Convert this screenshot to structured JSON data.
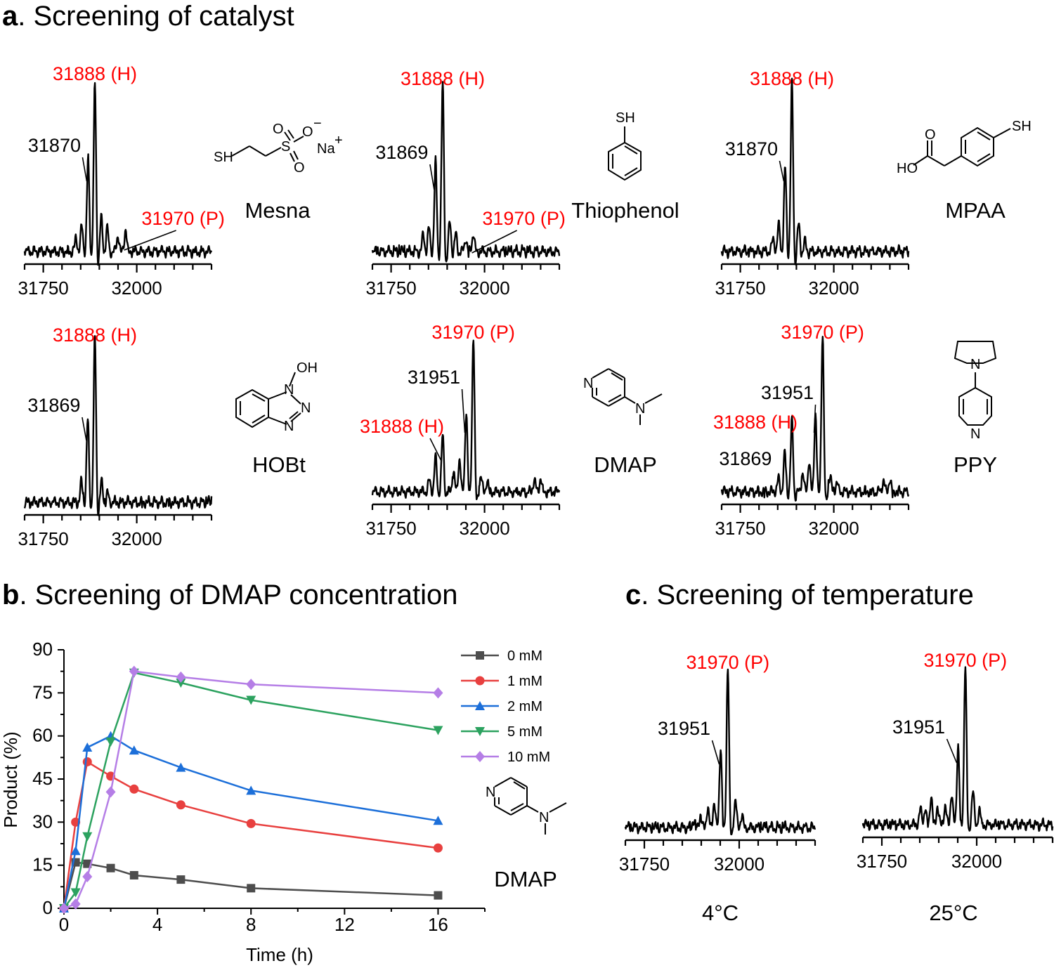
{
  "panels": {
    "a": {
      "letter": "a",
      "title": ". Screening of catalyst"
    },
    "b": {
      "letter": "b",
      "title": ". Screening of DMAP concentration"
    },
    "c": {
      "letter": "c",
      "title": ". Screening of temperature"
    }
  },
  "colors": {
    "highlight": "#ff0000",
    "text": "#000000"
  },
  "structures": {
    "mesna": {
      "SH": "SH",
      "S": "S",
      "O1": "O",
      "O2": "O",
      "Ominus": "O",
      "minus": "−",
      "Na": "Na",
      "plus": "+"
    },
    "thiophenol": {
      "SH": "SH"
    },
    "mpaa": {
      "SH": "SH",
      "HO": "HO",
      "O": "O"
    },
    "hobt": {
      "OH": "OH",
      "N1": "N",
      "N2": "N",
      "N3": "N"
    },
    "dmap": {
      "N1": "N",
      "N2": "N"
    },
    "ppy": {
      "N1": "N",
      "N2": "N"
    },
    "dmap_b": {
      "N1": "N",
      "N2": "N"
    }
  },
  "chart_data": [
    {
      "type": "line",
      "subtype": "deconvoluted mass spectrum",
      "panel": "a",
      "catalyst": "Mesna",
      "xlim": [
        31700,
        32200
      ],
      "xticks": [
        31750,
        32000
      ],
      "peak_labels": [
        {
          "text": "31888 (H)",
          "mass": 31888,
          "color": "red"
        },
        {
          "text": "31870",
          "mass": 31870,
          "color": "black"
        },
        {
          "text": "31970 (P)",
          "mass": 31970,
          "color": "red"
        }
      ],
      "peaks": [
        [
          31888,
          1.0
        ],
        [
          31870,
          0.55
        ],
        [
          31853,
          0.15
        ],
        [
          31905,
          0.2
        ],
        [
          31921,
          0.14
        ],
        [
          31950,
          0.1
        ],
        [
          31970,
          0.13
        ],
        [
          31838,
          0.08
        ]
      ]
    },
    {
      "type": "line",
      "subtype": "deconvoluted mass spectrum",
      "panel": "a",
      "catalyst": "Thiophenol",
      "xlim": [
        31700,
        32200
      ],
      "xticks": [
        31750,
        32000
      ],
      "peak_labels": [
        {
          "text": "31888 (H)",
          "mass": 31888,
          "color": "red"
        },
        {
          "text": "31869",
          "mass": 31869,
          "color": "black"
        },
        {
          "text": "31970 (P)",
          "mass": 31970,
          "color": "red"
        }
      ],
      "peaks": [
        [
          31888,
          1.0
        ],
        [
          31869,
          0.53
        ],
        [
          31851,
          0.14
        ],
        [
          31907,
          0.17
        ],
        [
          31923,
          0.1
        ],
        [
          31950,
          0.08
        ],
        [
          31970,
          0.11
        ],
        [
          31836,
          0.1
        ]
      ]
    },
    {
      "type": "line",
      "subtype": "deconvoluted mass spectrum",
      "panel": "a",
      "catalyst": "MPAA",
      "xlim": [
        31700,
        32200
      ],
      "xticks": [
        31750,
        32000
      ],
      "peak_labels": [
        {
          "text": "31888 (H)",
          "mass": 31888,
          "color": "red"
        },
        {
          "text": "31870",
          "mass": 31870,
          "color": "black"
        }
      ],
      "peaks": [
        [
          31888,
          1.0
        ],
        [
          31870,
          0.5
        ],
        [
          31853,
          0.16
        ],
        [
          31906,
          0.16
        ],
        [
          31923,
          0.06
        ],
        [
          31838,
          0.08
        ]
      ]
    },
    {
      "type": "line",
      "subtype": "deconvoluted mass spectrum",
      "panel": "a",
      "catalyst": "HOBt",
      "xlim": [
        31700,
        32200
      ],
      "xticks": [
        31750,
        32000
      ],
      "peak_labels": [
        {
          "text": "31888 (H)",
          "mass": 31888,
          "color": "red"
        },
        {
          "text": "31869",
          "mass": 31869,
          "color": "black"
        }
      ],
      "peaks": [
        [
          31888,
          1.0
        ],
        [
          31869,
          0.5
        ],
        [
          31852,
          0.12
        ],
        [
          31906,
          0.12
        ],
        [
          31922,
          0.05
        ]
      ]
    },
    {
      "type": "line",
      "subtype": "deconvoluted mass spectrum",
      "panel": "a",
      "catalyst": "DMAP",
      "xlim": [
        31700,
        32200
      ],
      "xticks": [
        31750,
        32000
      ],
      "peak_labels": [
        {
          "text": "31970 (P)",
          "mass": 31970,
          "color": "red"
        },
        {
          "text": "31951",
          "mass": 31951,
          "color": "black"
        },
        {
          "text": "31888 (H)",
          "mass": 31888,
          "color": "red"
        }
      ],
      "peaks": [
        [
          31970,
          1.0
        ],
        [
          31951,
          0.52
        ],
        [
          31888,
          0.36
        ],
        [
          31869,
          0.22
        ],
        [
          31933,
          0.22
        ],
        [
          31917,
          0.13
        ],
        [
          31852,
          0.07
        ],
        [
          31990,
          0.1
        ],
        [
          32007,
          0.07
        ],
        [
          32133,
          0.08
        ],
        [
          32150,
          0.09
        ]
      ]
    },
    {
      "type": "line",
      "subtype": "deconvoluted mass spectrum",
      "panel": "a",
      "catalyst": "PPY",
      "xlim": [
        31700,
        32200
      ],
      "xticks": [
        31750,
        32000
      ],
      "peak_labels": [
        {
          "text": "31970 (P)",
          "mass": 31970,
          "color": "red"
        },
        {
          "text": "31951",
          "mass": 31951,
          "color": "black"
        },
        {
          "text": "31888 (H)",
          "mass": 31888,
          "color": "red"
        },
        {
          "text": "31869",
          "mass": 31869,
          "color": "black"
        }
      ],
      "peaks": [
        [
          31970,
          1.0
        ],
        [
          31951,
          0.5
        ],
        [
          31888,
          0.45
        ],
        [
          31869,
          0.25
        ],
        [
          31934,
          0.2
        ],
        [
          31917,
          0.12
        ],
        [
          31852,
          0.08
        ],
        [
          31990,
          0.1
        ],
        [
          32008,
          0.06
        ],
        [
          32133,
          0.07
        ],
        [
          32150,
          0.08
        ]
      ]
    },
    {
      "type": "line",
      "panel": "b",
      "title": "Screening of DMAP concentration",
      "xlabel": "Time (h)",
      "ylabel": "Product (%)",
      "xlim": [
        0,
        18
      ],
      "ylim": [
        0,
        90
      ],
      "xticks": [
        0,
        4,
        8,
        12,
        16
      ],
      "yticks": [
        0,
        15,
        30,
        45,
        60,
        75,
        90
      ],
      "legend_position": "top-right",
      "inset_label": "DMAP",
      "series": [
        {
          "name": "0 mM",
          "color": "#4d4d4d",
          "marker": "square",
          "x": [
            0,
            0.5,
            1,
            2,
            3,
            5,
            8,
            16
          ],
          "y": [
            0,
            16,
            15.5,
            14,
            11.5,
            10,
            7,
            4.5
          ]
        },
        {
          "name": "1 mM",
          "color": "#e8403f",
          "marker": "circle",
          "x": [
            0,
            0.5,
            1,
            2,
            3,
            5,
            8,
            16
          ],
          "y": [
            0,
            30,
            51,
            46,
            41.5,
            36,
            29.5,
            21
          ]
        },
        {
          "name": "2 mM",
          "color": "#1c6fd9",
          "marker": "triangle-up",
          "x": [
            0,
            0.5,
            1,
            2,
            3,
            5,
            8,
            16
          ],
          "y": [
            0,
            20,
            56,
            60,
            55,
            49,
            41,
            30.5
          ]
        },
        {
          "name": "5 mM",
          "color": "#2ca25f",
          "marker": "triangle-down",
          "x": [
            0,
            0.5,
            1,
            2,
            3,
            5,
            8,
            16
          ],
          "y": [
            0,
            5.5,
            25,
            58,
            82,
            78.5,
            72.5,
            62
          ]
        },
        {
          "name": "10 mM",
          "color": "#b57ee6",
          "marker": "diamond",
          "x": [
            0,
            0.5,
            1,
            2,
            3,
            5,
            8,
            16
          ],
          "y": [
            0,
            1.5,
            11,
            40.5,
            82.5,
            80.5,
            78,
            75
          ]
        }
      ]
    },
    {
      "type": "line",
      "subtype": "deconvoluted mass spectrum",
      "panel": "c",
      "temperature": "4°C",
      "xlim": [
        31700,
        32200
      ],
      "xticks": [
        31750,
        32000
      ],
      "peak_labels": [
        {
          "text": "31970 (P)",
          "mass": 31970,
          "color": "red"
        },
        {
          "text": "31951",
          "mass": 31951,
          "color": "black"
        }
      ],
      "peaks": [
        [
          31970,
          1.0
        ],
        [
          31951,
          0.5
        ],
        [
          31934,
          0.16
        ],
        [
          31917,
          0.12
        ],
        [
          31990,
          0.17
        ],
        [
          32007,
          0.08
        ],
        [
          31898,
          0.08
        ],
        [
          31880,
          0.05
        ]
      ]
    },
    {
      "type": "line",
      "subtype": "deconvoluted mass spectrum",
      "panel": "c",
      "temperature": "25°C",
      "xlim": [
        31700,
        32200
      ],
      "xticks": [
        31750,
        32000
      ],
      "peak_labels": [
        {
          "text": "31970 (P)",
          "mass": 31970,
          "color": "red"
        },
        {
          "text": "31951",
          "mass": 31951,
          "color": "black"
        }
      ],
      "peaks": [
        [
          31970,
          1.0
        ],
        [
          31951,
          0.5
        ],
        [
          31934,
          0.2
        ],
        [
          31917,
          0.12
        ],
        [
          31990,
          0.22
        ],
        [
          32007,
          0.1
        ],
        [
          31897,
          0.12
        ],
        [
          31880,
          0.18
        ],
        [
          31864,
          0.1
        ],
        [
          31852,
          0.09
        ]
      ]
    }
  ]
}
